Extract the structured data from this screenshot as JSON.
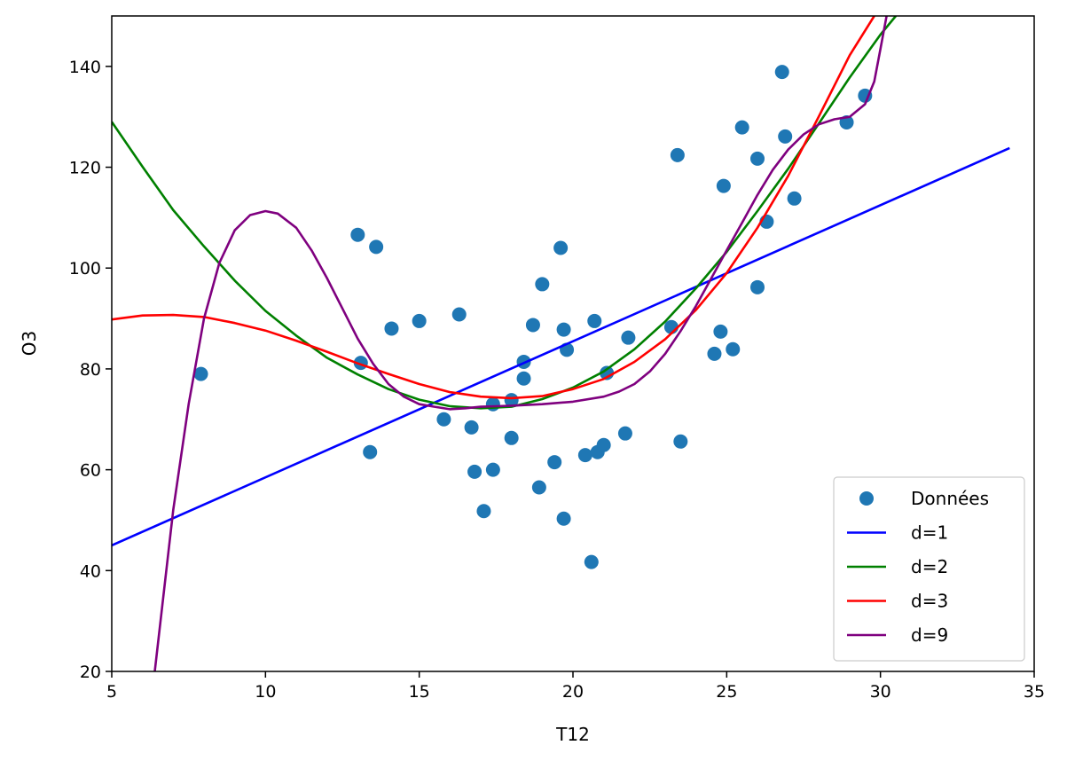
{
  "chart_data": {
    "type": "scatter",
    "title": "",
    "xlabel": "T12",
    "ylabel": "O3",
    "xlim": [
      5,
      35
    ],
    "ylim": [
      20,
      150
    ],
    "xticks": [
      "5",
      "10",
      "15",
      "20",
      "25",
      "30",
      "35"
    ],
    "yticks": [
      "20",
      "40",
      "60",
      "80",
      "100",
      "120",
      "140"
    ],
    "grid": false,
    "legend_position": "lower-right",
    "scatter": {
      "name": "Données",
      "color": "#1f77b4",
      "points": [
        [
          7.9,
          79.0
        ],
        [
          13.0,
          106.6
        ],
        [
          13.1,
          81.2
        ],
        [
          13.4,
          63.5
        ],
        [
          13.6,
          104.2
        ],
        [
          14.1,
          88.0
        ],
        [
          15.0,
          89.5
        ],
        [
          15.8,
          70.0
        ],
        [
          16.3,
          90.8
        ],
        [
          16.7,
          68.4
        ],
        [
          16.8,
          59.6
        ],
        [
          17.1,
          51.8
        ],
        [
          17.4,
          73.0
        ],
        [
          17.4,
          60.0
        ],
        [
          18.0,
          73.8
        ],
        [
          18.0,
          66.3
        ],
        [
          18.4,
          81.4
        ],
        [
          18.4,
          78.1
        ],
        [
          18.7,
          88.7
        ],
        [
          18.9,
          56.5
        ],
        [
          19.0,
          96.8
        ],
        [
          19.4,
          61.5
        ],
        [
          19.6,
          104.0
        ],
        [
          19.7,
          87.8
        ],
        [
          19.7,
          50.3
        ],
        [
          19.8,
          83.8
        ],
        [
          20.4,
          62.9
        ],
        [
          20.6,
          41.7
        ],
        [
          20.7,
          89.5
        ],
        [
          20.8,
          63.5
        ],
        [
          21.0,
          64.9
        ],
        [
          21.1,
          79.2
        ],
        [
          21.7,
          67.2
        ],
        [
          21.8,
          86.2
        ],
        [
          23.2,
          88.3
        ],
        [
          23.4,
          122.4
        ],
        [
          23.5,
          65.6
        ],
        [
          24.6,
          83.0
        ],
        [
          24.8,
          87.4
        ],
        [
          24.9,
          116.3
        ],
        [
          25.2,
          83.9
        ],
        [
          25.5,
          127.9
        ],
        [
          26.0,
          121.7
        ],
        [
          26.0,
          96.2
        ],
        [
          26.3,
          109.2
        ],
        [
          26.8,
          138.9
        ],
        [
          26.9,
          126.1
        ],
        [
          27.2,
          113.8
        ],
        [
          28.9,
          128.9
        ],
        [
          29.5,
          134.2
        ]
      ]
    },
    "series": [
      {
        "name": "d=1",
        "color": "#0000ff",
        "x": [
          5.0,
          34.2
        ],
        "y": [
          45.0,
          123.8
        ]
      },
      {
        "name": "d=2",
        "color": "#008000",
        "x": [
          5,
          6,
          7,
          8,
          9,
          10,
          11,
          12,
          13,
          14,
          15,
          16,
          17,
          18,
          19,
          20,
          21,
          22,
          23,
          24,
          25,
          26,
          27,
          28,
          29,
          30,
          30.5
        ],
        "y": [
          129.0,
          120.1,
          111.5,
          104.3,
          97.5,
          91.5,
          86.6,
          82.2,
          78.9,
          76.0,
          73.9,
          72.6,
          72.2,
          72.5,
          74.0,
          76.3,
          79.5,
          83.9,
          89.4,
          96.0,
          103.2,
          111.3,
          119.7,
          128.7,
          137.8,
          146.3,
          150.0
        ]
      },
      {
        "name": "d=3",
        "color": "#ff0000",
        "x": [
          5,
          6,
          7,
          8,
          9,
          10,
          11,
          12,
          13,
          14,
          15,
          16,
          17,
          18,
          19,
          20,
          21,
          22,
          23,
          24,
          25,
          26,
          27,
          28,
          29,
          29.8
        ],
        "y": [
          89.8,
          90.6,
          90.7,
          90.3,
          89.1,
          87.6,
          85.6,
          83.4,
          81.1,
          79.0,
          77.0,
          75.4,
          74.5,
          74.2,
          74.6,
          76.0,
          78.0,
          81.4,
          85.9,
          91.7,
          99.0,
          108.0,
          118.3,
          130.1,
          142.2,
          150.0
        ]
      },
      {
        "name": "d=9",
        "color": "#7f007f",
        "x": [
          6.4,
          7.0,
          7.5,
          8.0,
          8.5,
          9.0,
          9.5,
          10.0,
          10.4,
          11.0,
          11.5,
          12.0,
          12.5,
          13.0,
          13.5,
          14.0,
          14.5,
          15.0,
          15.5,
          16.0,
          16.5,
          17.0,
          17.5,
          18.0,
          19.0,
          20.0,
          21.0,
          21.5,
          22.0,
          22.5,
          23.0,
          23.5,
          24.0,
          24.5,
          25.0,
          25.5,
          26.0,
          26.5,
          27.0,
          27.5,
          28.0,
          28.5,
          29.0,
          29.5,
          29.8,
          30.0,
          30.2
        ],
        "y": [
          20.0,
          52.0,
          73.0,
          90.0,
          101.0,
          107.5,
          110.5,
          111.3,
          110.8,
          108.0,
          103.5,
          98.0,
          92.0,
          86.0,
          81.0,
          77.0,
          74.5,
          73.0,
          72.5,
          72.0,
          72.2,
          72.5,
          72.6,
          72.7,
          73.0,
          73.5,
          74.5,
          75.5,
          77.0,
          79.5,
          83.0,
          87.5,
          92.5,
          98.0,
          103.5,
          109.0,
          114.5,
          119.5,
          123.5,
          126.5,
          128.5,
          129.5,
          130.0,
          132.5,
          137.0,
          143.5,
          150.0
        ]
      }
    ]
  }
}
